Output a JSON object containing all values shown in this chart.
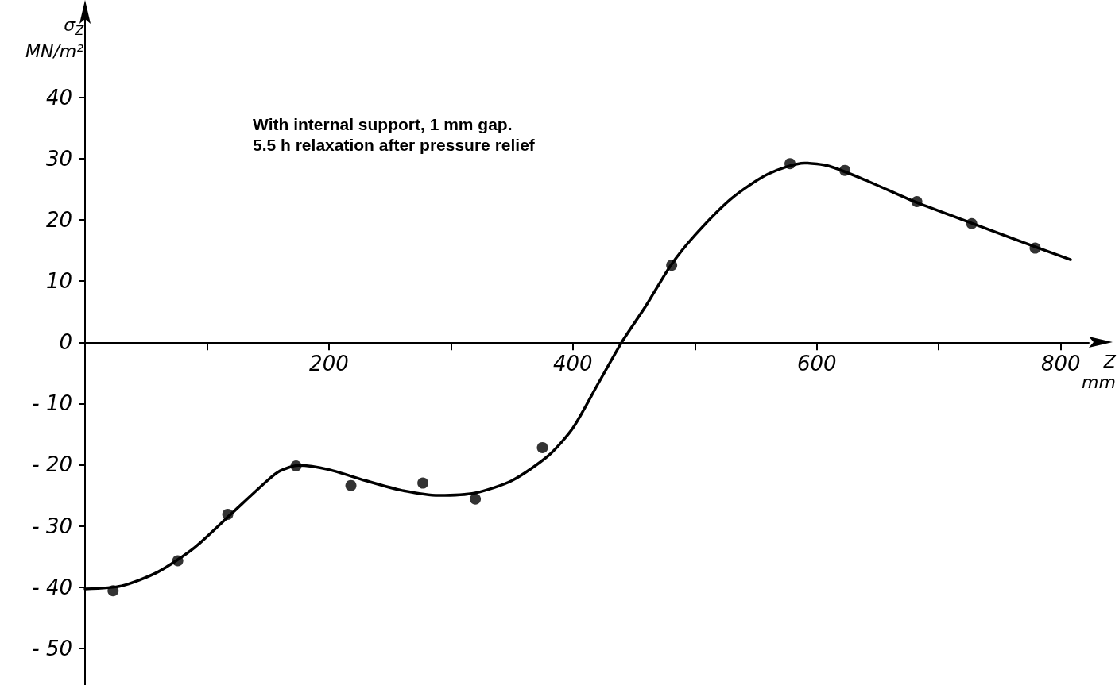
{
  "chart_data": {
    "type": "scatter",
    "xlabel": "Z\nmm",
    "ylabel": "σ$_{Z}$\nMN/m²",
    "annotations": [
      "With internal support, 1 mm gap.\n5.5 h relaxation after pressure relief"
    ],
    "xlim": [
      0,
      823
    ],
    "ylim": [
      -56,
      54
    ],
    "xticks": [
      {
        "value": 100,
        "label": null
      },
      200,
      {
        "value": 300,
        "label": null
      },
      400,
      {
        "value": 500,
        "label": null
      },
      600,
      {
        "value": 700,
        "label": null
      },
      800
    ],
    "yticks": [
      -50,
      -40,
      -30,
      -20,
      -10,
      0,
      10,
      20,
      30,
      40
    ],
    "grid": false,
    "series": [
      {
        "color": "#000000",
        "marker": "circle",
        "x": [
          23,
          76,
          117,
          173,
          218,
          277,
          320,
          375,
          481,
          578,
          623,
          682,
          727,
          779
        ],
        "values": [
          -40.6,
          -35.7,
          -28.1,
          -20.2,
          -23.4,
          -23.0,
          -25.6,
          -17.2,
          12.6,
          29.2,
          28.1,
          23.0,
          19.4,
          15.4
        ]
      },
      {
        "type": "line",
        "color": "#000000",
        "marker": "none",
        "line_style": "solid",
        "x": [
          0,
          30,
          60,
          90,
          120,
          150,
          160,
          175,
          200,
          230,
          260,
          290,
          320,
          350,
          380,
          400,
          420,
          440,
          460,
          480,
          500,
          530,
          560,
          590,
          610,
          640,
          680,
          720,
          760,
          808
        ],
        "values": [
          -40.3,
          -39.8,
          -37.5,
          -33.5,
          -28,
          -22.5,
          -21,
          -20.1,
          -20.8,
          -22.6,
          -24.2,
          -25,
          -24.6,
          -22.6,
          -18.5,
          -14,
          -7,
          0,
          6,
          12.5,
          17.5,
          23.5,
          27.5,
          29.3,
          28.8,
          26.5,
          23,
          20,
          17,
          13.5
        ]
      }
    ]
  }
}
